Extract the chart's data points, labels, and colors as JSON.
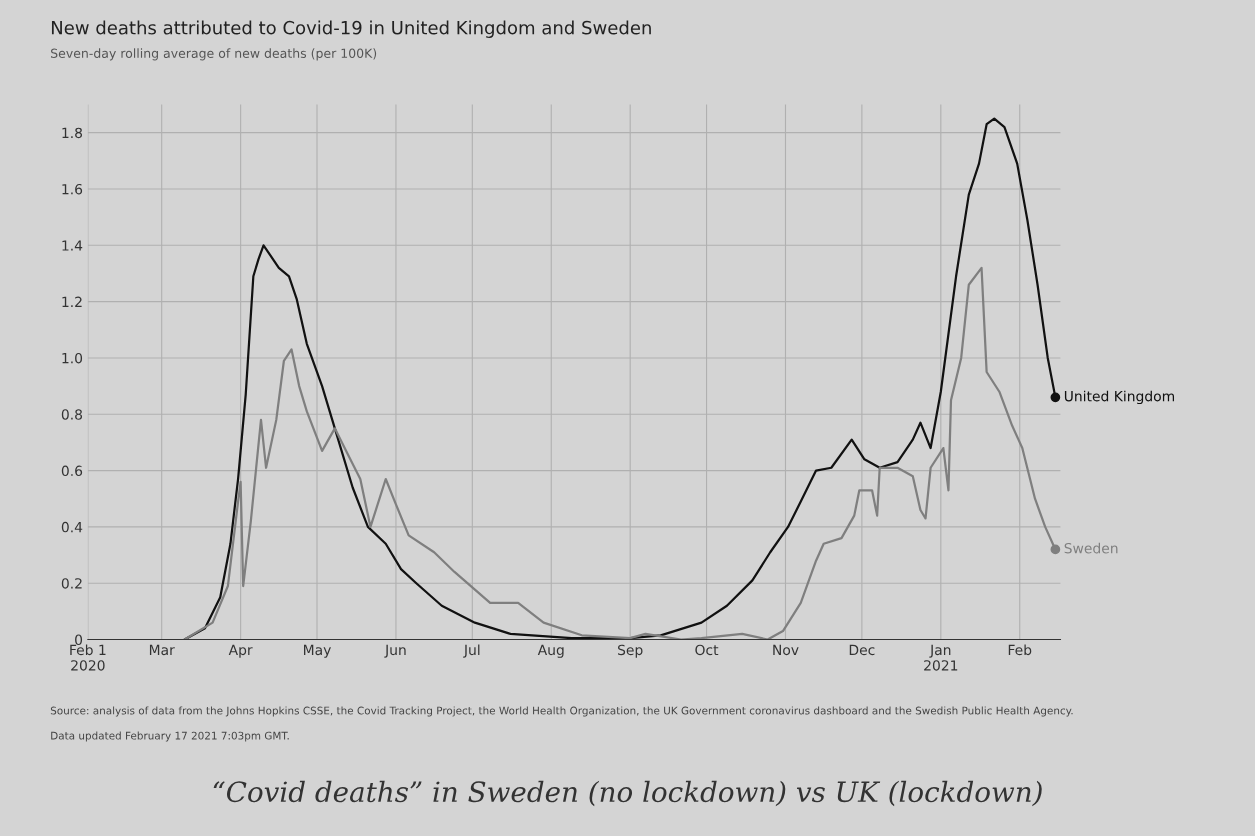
{
  "chart_data": {
    "type": "line",
    "title": "New deaths attributed to Covid-19 in United Kingdom and Sweden",
    "subtitle": "Seven-day rolling average of new deaths (per 100K)",
    "series": [
      {
        "name": "United Kingdom",
        "color": "#111111",
        "x": [
          "2020-03-10",
          "2020-03-18",
          "2020-03-24",
          "2020-03-28",
          "2020-03-31",
          "2020-04-03",
          "2020-04-06",
          "2020-04-08",
          "2020-04-10",
          "2020-04-16",
          "2020-04-20",
          "2020-04-23",
          "2020-04-27",
          "2020-05-03",
          "2020-05-08",
          "2020-05-15",
          "2020-05-21",
          "2020-05-28",
          "2020-06-03",
          "2020-06-09",
          "2020-06-19",
          "2020-07-02",
          "2020-07-16",
          "2020-08-09",
          "2020-09-01",
          "2020-09-13",
          "2020-09-29",
          "2020-10-09",
          "2020-10-19",
          "2020-10-26",
          "2020-11-02",
          "2020-11-07",
          "2020-11-13",
          "2020-11-19",
          "2020-11-27",
          "2020-12-02",
          "2020-12-08",
          "2020-12-15",
          "2020-12-21",
          "2020-12-24",
          "2020-12-28",
          "2021-01-01",
          "2021-01-07",
          "2021-01-12",
          "2021-01-16",
          "2021-01-19",
          "2021-01-22",
          "2021-01-26",
          "2021-01-31",
          "2021-02-04",
          "2021-02-08",
          "2021-02-12",
          "2021-02-15"
        ],
        "values": [
          0,
          0.04,
          0.15,
          0.34,
          0.57,
          0.87,
          1.29,
          1.35,
          1.4,
          1.32,
          1.29,
          1.21,
          1.05,
          0.9,
          0.75,
          0.54,
          0.4,
          0.34,
          0.25,
          0.2,
          0.12,
          0.06,
          0.02,
          0.005,
          0.005,
          0.015,
          0.06,
          0.12,
          0.21,
          0.31,
          0.4,
          0.49,
          0.6,
          0.61,
          0.71,
          0.64,
          0.61,
          0.63,
          0.71,
          0.77,
          0.68,
          0.88,
          1.29,
          1.58,
          1.69,
          1.83,
          1.85,
          1.82,
          1.69,
          1.49,
          1.26,
          1.0,
          0.86
        ]
      },
      {
        "name": "Sweden",
        "color": "#7f7f7f",
        "x": [
          "2020-03-10",
          "2020-03-21",
          "2020-03-27",
          "2020-03-31",
          "2020-04-01",
          "2020-04-02",
          "2020-04-05",
          "2020-04-09",
          "2020-04-11",
          "2020-04-15",
          "2020-04-18",
          "2020-04-21",
          "2020-04-24",
          "2020-04-27",
          "2020-05-03",
          "2020-05-08",
          "2020-05-13",
          "2020-05-18",
          "2020-05-22",
          "2020-05-28",
          "2020-06-01",
          "2020-06-06",
          "2020-06-16",
          "2020-06-24",
          "2020-07-08",
          "2020-07-19",
          "2020-07-29",
          "2020-08-13",
          "2020-09-01",
          "2020-09-07",
          "2020-09-21",
          "2020-09-29",
          "2020-10-15",
          "2020-10-25",
          "2020-10-31",
          "2020-11-07",
          "2020-11-13",
          "2020-11-16",
          "2020-11-23",
          "2020-11-28",
          "2020-11-30",
          "2020-12-05",
          "2020-12-07",
          "2020-12-08",
          "2020-12-15",
          "2020-12-21",
          "2020-12-24",
          "2020-12-26",
          "2020-12-28",
          "2021-01-02",
          "2021-01-04",
          "2021-01-05",
          "2021-01-09",
          "2021-01-12",
          "2021-01-17",
          "2021-01-19",
          "2021-01-24",
          "2021-01-29",
          "2021-02-02",
          "2021-02-07",
          "2021-02-11",
          "2021-02-15"
        ],
        "values": [
          0,
          0.06,
          0.19,
          0.49,
          0.56,
          0.19,
          0.42,
          0.78,
          0.61,
          0.78,
          0.99,
          1.03,
          0.9,
          0.81,
          0.67,
          0.75,
          0.66,
          0.57,
          0.4,
          0.57,
          0.48,
          0.37,
          0.31,
          0.24,
          0.13,
          0.13,
          0.06,
          0.015,
          0.005,
          0.02,
          0,
          0.005,
          0.02,
          0,
          0.03,
          0.13,
          0.28,
          0.34,
          0.36,
          0.44,
          0.53,
          0.53,
          0.44,
          0.61,
          0.61,
          0.58,
          0.46,
          0.43,
          0.61,
          0.68,
          0.53,
          0.85,
          1.0,
          1.26,
          1.32,
          0.95,
          0.88,
          0.76,
          0.68,
          0.5,
          0.4,
          0.32
        ]
      }
    ],
    "xlim": [
      "2020-02-01",
      "2021-02-17"
    ],
    "xticks": [
      {
        "value": "2020-02-01",
        "label": "Feb 1\n2020"
      },
      {
        "value": "2020-03-01",
        "label": "Mar"
      },
      {
        "value": "2020-04-01",
        "label": "Apr"
      },
      {
        "value": "2020-05-01",
        "label": "May"
      },
      {
        "value": "2020-06-01",
        "label": "Jun"
      },
      {
        "value": "2020-07-01",
        "label": "Jul"
      },
      {
        "value": "2020-08-01",
        "label": "Aug"
      },
      {
        "value": "2020-09-01",
        "label": "Sep"
      },
      {
        "value": "2020-10-01",
        "label": "Oct"
      },
      {
        "value": "2020-11-01",
        "label": "Nov"
      },
      {
        "value": "2020-12-01",
        "label": "Dec"
      },
      {
        "value": "2021-01-01",
        "label": "Jan\n2021"
      },
      {
        "value": "2021-02-01",
        "label": "Feb"
      }
    ],
    "ylim": [
      0,
      1.9
    ],
    "yticks": [
      0,
      0.2,
      0.4,
      0.6,
      0.8,
      {
        "value": 1,
        "label": "1.0"
      },
      1.2,
      1.4,
      1.6,
      1.8
    ],
    "grid": true,
    "legend": false,
    "line_style": "solid",
    "annotations": [
      "Source: analysis of data from the Johns Hopkins CSSE, the Covid Tracking Project, the World Health Organization, the UK Government coronavirus dashboard and the Swedish Public Health Agency.",
      "Data updated February 17 2021 7:03pm GMT.",
      "“Covid deaths” in Sweden (no lockdown) vs UK (lockdown)"
    ]
  }
}
